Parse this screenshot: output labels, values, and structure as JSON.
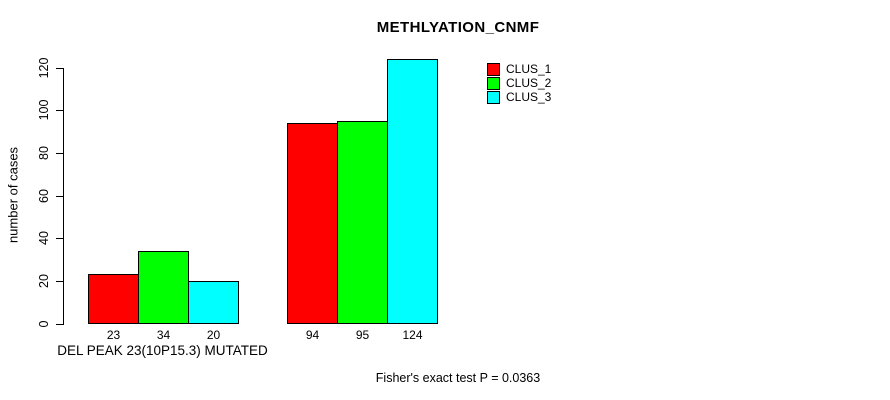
{
  "title": "METHLYATION_CNMF",
  "chart_data": {
    "type": "bar",
    "title": "METHLYATION_CNMF",
    "ylabel": "number of cases",
    "xlabel": "DEL PEAK 23(10P15.3) MUTATED",
    "annotation": "Fisher's exact test P = 0.0363",
    "ylim": [
      0,
      120
    ],
    "yticks": [
      0,
      20,
      40,
      60,
      80,
      100,
      120
    ],
    "grid": false,
    "legend_position": "top-right",
    "groups": [
      "DEL PEAK 23(10P15.3) MUTATED",
      ""
    ],
    "series": [
      {
        "name": "CLUS_1",
        "color": "#ff0000",
        "values": [
          23,
          94
        ]
      },
      {
        "name": "CLUS_2",
        "color": "#00ff00",
        "values": [
          34,
          95
        ]
      },
      {
        "name": "CLUS_3",
        "color": "#00ffff",
        "values": [
          20,
          124
        ]
      }
    ],
    "colors": {
      "clus_1": "#ff0000",
      "clus_2": "#00ff00",
      "clus_3": "#00ffff"
    }
  }
}
